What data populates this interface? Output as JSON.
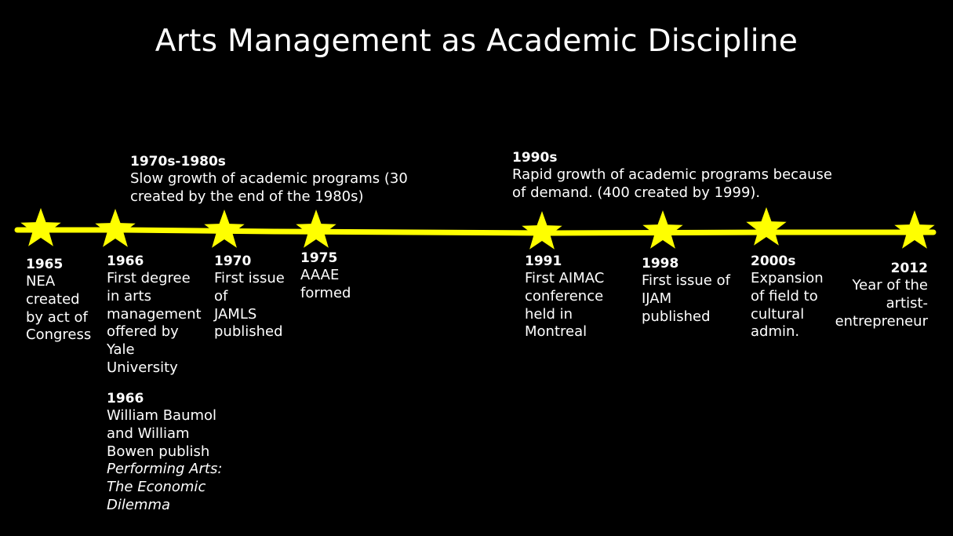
{
  "title": "Arts Management as Academic Discipline",
  "colors": {
    "background": "#000000",
    "timeline": "#ffff00",
    "star": "#ffff00",
    "text": "#ffffff"
  },
  "markers": [
    "star-icon",
    "star-icon",
    "star-icon",
    "star-icon",
    "star-icon",
    "star-icon",
    "star-icon",
    "star-icon"
  ],
  "periods": [
    {
      "year": "1970s-1980s",
      "text": "Slow growth of academic programs (30\ncreated by the end of the 1980s)"
    },
    {
      "year": "1990s",
      "text": "Rapid growth of academic programs because\nof demand. (400 created by 1999)."
    }
  ],
  "events": [
    {
      "year": "1965",
      "text": "NEA\ncreated\nby act of\nCongress"
    },
    {
      "year": "1966",
      "text": "First  degree\nin arts\nmanagement\noffered by\nYale\nUniversity"
    },
    {
      "year": "1966",
      "text": "William Baumol\nand William\nBowen publish",
      "italic": "Performing Arts:\nThe Economic\nDilemma"
    },
    {
      "year": "1970",
      "text": "First issue\nof\nJAMLS\npublished"
    },
    {
      "year": "1975",
      "text": "AAAE\nformed"
    },
    {
      "year": "1991",
      "text": "First AIMAC\nconference\nheld in\nMontreal"
    },
    {
      "year": "1998",
      "text": "First issue of\nIJAM\npublished"
    },
    {
      "year": "2000s",
      "text": "Expansion\nof field to\ncultural\nadmin."
    },
    {
      "year": "2012",
      "text": "Year of the\nartist-\nentrepreneur"
    }
  ]
}
